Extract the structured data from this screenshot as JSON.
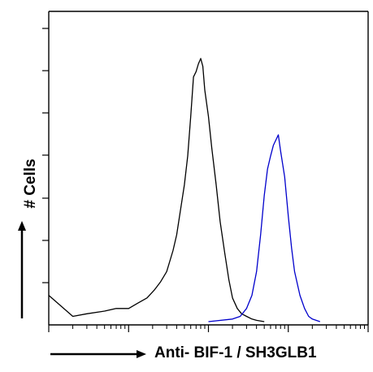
{
  "chart_data": {
    "type": "line",
    "xlabel": "Anti- BIF-1 / SH3GLB1",
    "ylabel": "# Cells",
    "x_scale": "log",
    "xlim": [
      1,
      10000
    ],
    "ylim": [
      0,
      100
    ],
    "y_major_ticks": 7,
    "series": [
      {
        "color": "#000000",
        "x": [
          1,
          2,
          3,
          5,
          7,
          10,
          13,
          17,
          21,
          25,
          30,
          36,
          40,
          45,
          50,
          55,
          60,
          65,
          70,
          75,
          80,
          85,
          90,
          100,
          110,
          125,
          140,
          160,
          180,
          200,
          230,
          260,
          300,
          350,
          400,
          500
        ],
        "y": [
          10,
          2,
          3,
          4,
          5,
          5,
          7,
          9,
          12,
          15,
          19,
          27,
          33,
          43,
          52,
          63,
          78,
          93,
          95,
          98,
          100,
          97,
          88,
          78,
          66,
          52,
          38,
          26,
          16,
          9,
          5,
          3,
          2,
          1,
          0.5,
          0
        ]
      },
      {
        "color": "#0000cc",
        "x": [
          100,
          200,
          250,
          300,
          350,
          400,
          450,
          500,
          550,
          600,
          650,
          700,
          750,
          800,
          900,
          1000,
          1100,
          1200,
          1400,
          1600,
          1800,
          2000,
          2500
        ],
        "y": [
          0,
          1,
          2,
          5,
          10,
          19,
          33,
          48,
          58,
          63,
          67,
          69,
          71,
          65,
          55,
          40,
          28,
          19,
          10,
          5,
          2,
          1,
          0
        ]
      }
    ]
  }
}
